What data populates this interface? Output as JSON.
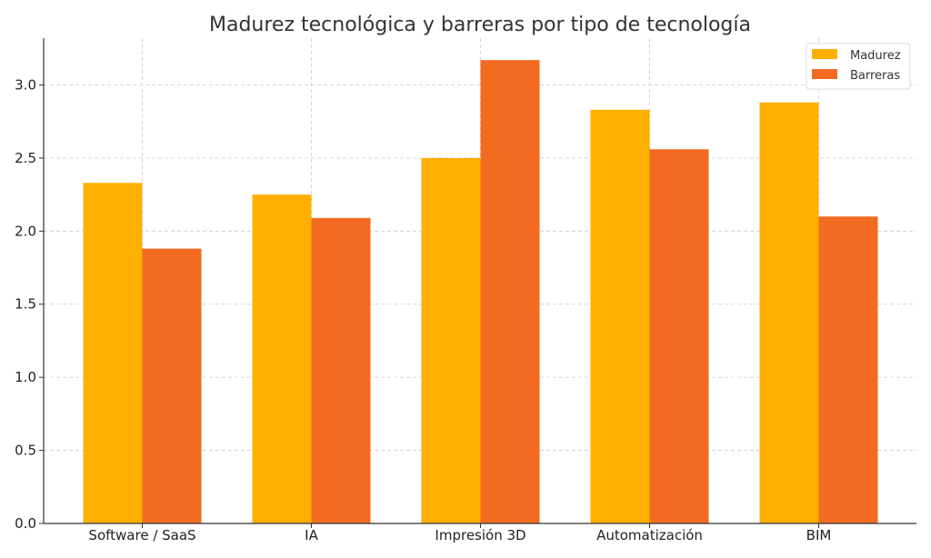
{
  "chart_data": {
    "type": "bar",
    "title": "Madurez tecnológica y barreras por tipo de tecnología",
    "xlabel": "",
    "ylabel": "",
    "categories": [
      "Software / SaaS",
      "IA",
      "Impresión 3D",
      "Automatización",
      "BIM"
    ],
    "series": [
      {
        "name": "Madurez",
        "color": "#FFAF00",
        "values": [
          2.33,
          2.25,
          2.5,
          2.83,
          2.88
        ]
      },
      {
        "name": "Barreras",
        "color": "#F26B21",
        "values": [
          1.88,
          2.09,
          3.17,
          2.56,
          2.1
        ]
      }
    ],
    "ylim": [
      0,
      3.32
    ],
    "yticks": [
      "0.0",
      "0.5",
      "1.0",
      "1.5",
      "2.0",
      "2.5",
      "3.0"
    ],
    "grid": true,
    "legend_position": "top-right"
  }
}
